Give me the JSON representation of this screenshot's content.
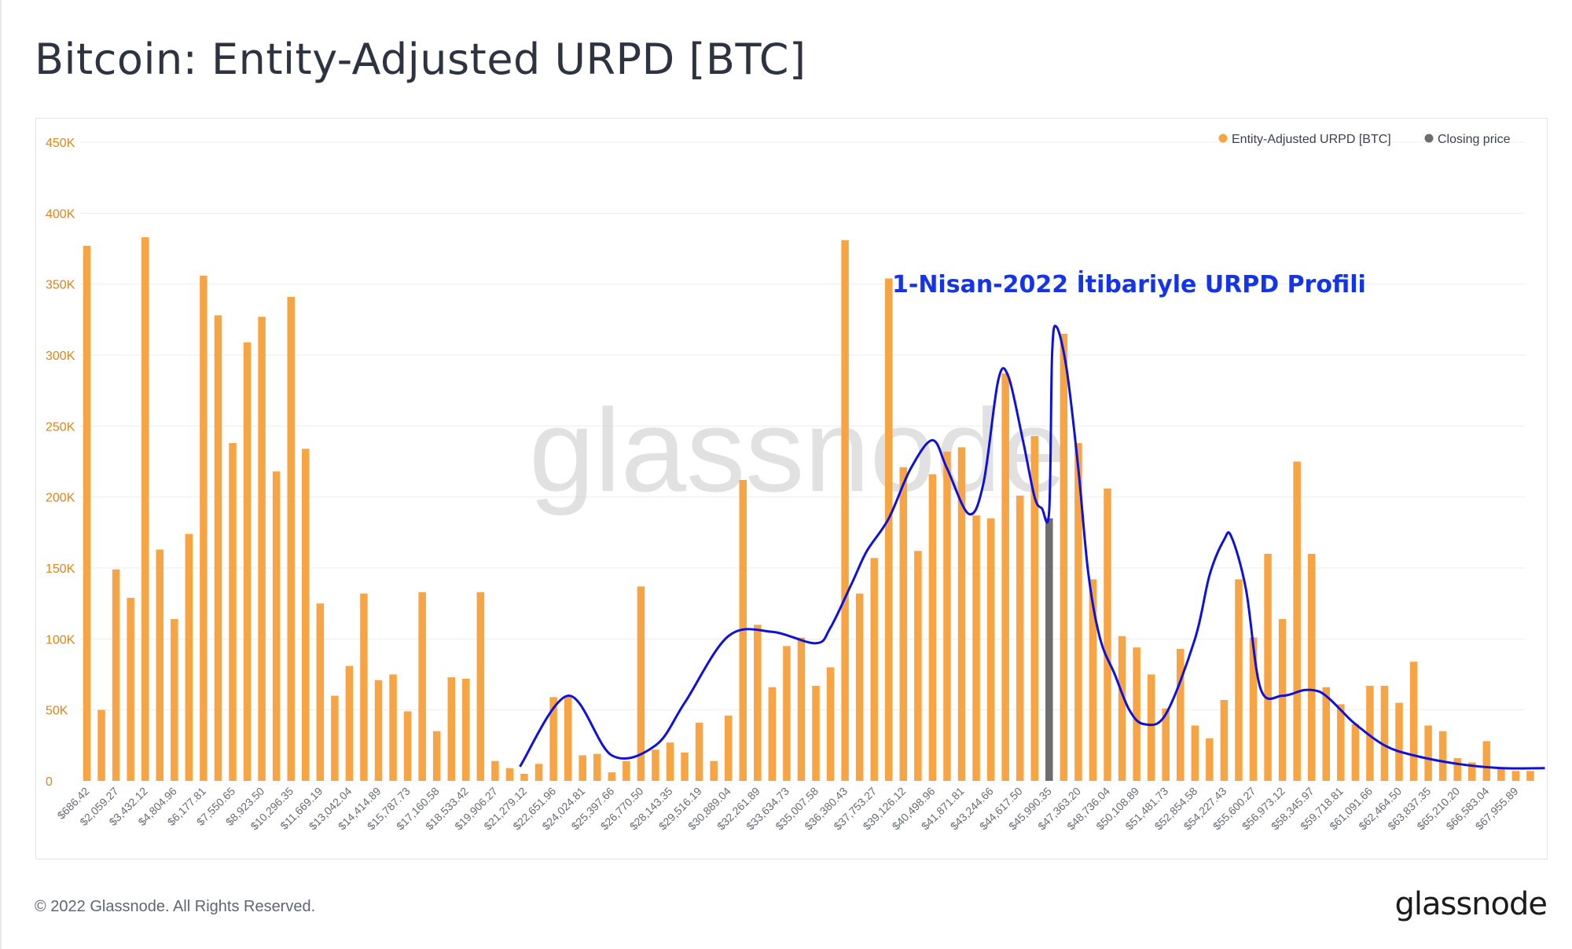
{
  "header": {
    "title": "Bitcoin: Entity-Adjusted URPD [BTC]"
  },
  "footer": {
    "copyright": "© 2022 Glassnode. All Rights Reserved.",
    "logo": "glassnode"
  },
  "watermark": "glassnode",
  "annotation": {
    "text": "1-Nisan-2022 İtibariyle URPD Profili",
    "color": "#1434e6"
  },
  "colors": {
    "bar": "#f7a445",
    "closing": "#6d6d6d",
    "curve": "#1010dd",
    "axis_text": "#d9861f",
    "grid": "#eeeeee"
  },
  "chart_data": {
    "type": "bar",
    "title": "Bitcoin: Entity-Adjusted URPD [BTC]",
    "ylim": [
      0,
      450000
    ],
    "y_ticks": [
      0,
      50000,
      100000,
      150000,
      200000,
      250000,
      300000,
      350000,
      400000,
      450000
    ],
    "y_tick_labels": [
      "0",
      "50K",
      "100K",
      "150K",
      "200K",
      "250K",
      "300K",
      "350K",
      "400K",
      "450K"
    ],
    "legend_position": "top-right",
    "grid": true,
    "legend": [
      {
        "name": "Entity-Adjusted URPD [BTC]",
        "color": "#f7a445"
      },
      {
        "name": "Closing price",
        "color": "#6d6d6d"
      }
    ],
    "x_tick_labels": [
      "$686.42",
      "$2,059.27",
      "$3,432.12",
      "$4,804.96",
      "$6,177.81",
      "$7,550.65",
      "$8,923.50",
      "$10,296.35",
      "$11,669.19",
      "$13,042.04",
      "$14,414.89",
      "$15,787.73",
      "$17,160.58",
      "$18,533.42",
      "$19,906.27",
      "$21,279.12",
      "$22,651.96",
      "$24,024.81",
      "$25,397.66",
      "$26,770.50",
      "$28,143.35",
      "$29,516.19",
      "$30,889.04",
      "$32,261.89",
      "$33,634.73",
      "$35,007.58",
      "$36,380.43",
      "$37,753.27",
      "$39,126.12",
      "$40,498.96",
      "$41,871.81",
      "$43,244.66",
      "$44,617.50",
      "$45,990.35",
      "$47,363.20",
      "$48,736.04",
      "$50,108.89",
      "$51,481.73",
      "$52,854.58",
      "$54,227.43",
      "$55,600.27",
      "$56,973.12",
      "$58,345.97",
      "$59,718.81",
      "$61,091.66",
      "$62,464.50",
      "$63,837.35",
      "$65,210.20",
      "$66,583.04",
      "$67,955.89"
    ],
    "bar_count": 100,
    "closing_price_bin": 66,
    "values": [
      377000,
      50000,
      149000,
      129000,
      383000,
      163000,
      114000,
      174000,
      356000,
      328000,
      238000,
      309000,
      327000,
      218000,
      341000,
      234000,
      125000,
      60000,
      81000,
      132000,
      71000,
      75000,
      49000,
      133000,
      35000,
      73000,
      72000,
      133000,
      14000,
      9000,
      5000,
      12000,
      59000,
      60000,
      18000,
      19000,
      6000,
      14000,
      137000,
      22000,
      27000,
      20000,
      41000,
      14000,
      46000,
      212000,
      110000,
      66000,
      95000,
      101000,
      67000,
      80000,
      381000,
      132000,
      157000,
      354000,
      221000,
      162000,
      216000,
      232000,
      235000,
      187000,
      185000,
      287000,
      201000,
      243000,
      185000,
      315000,
      238000,
      142000,
      206000,
      102000,
      94000,
      75000,
      51000,
      93000,
      39000,
      30000,
      57000,
      142000,
      101000,
      160000,
      114000,
      225000,
      160000,
      66000,
      54000,
      40000,
      67000,
      67000,
      55000,
      84000,
      39000,
      35000,
      16000,
      13000,
      28000,
      9000,
      7000,
      7000
    ],
    "annotation_curve": {
      "label": "1-Nisan-2022 İtibariyle URPD Profili",
      "x_bins": [
        29.7,
        33.0,
        36.0,
        39.0,
        41.0,
        44.0,
        47.0,
        50.0,
        51.0,
        52.5,
        53.5,
        55.0,
        56.5,
        58.0,
        59.0,
        60.5,
        61.5,
        62.5,
        63.2,
        64.2,
        65.0,
        65.5,
        66.0,
        66.2,
        66.5,
        67.2,
        68.0,
        68.7,
        69.5,
        70.5,
        71.5,
        72.5,
        74.0,
        76.0,
        77.0,
        78.0,
        78.5,
        79.5,
        80.5,
        82.0,
        83.5,
        84.5,
        85.2,
        86.0,
        87.0,
        89.0,
        91.0,
        94.0,
        97.0,
        100.0
      ],
      "y_values": [
        10000,
        60000,
        18000,
        25000,
        55000,
        102000,
        105000,
        97000,
        108000,
        140000,
        162000,
        185000,
        220000,
        240000,
        220000,
        188000,
        210000,
        282000,
        285000,
        240000,
        200000,
        192000,
        190000,
        300000,
        320000,
        290000,
        220000,
        145000,
        100000,
        75000,
        50000,
        40000,
        47000,
        100000,
        145000,
        170000,
        172000,
        135000,
        65000,
        60000,
        64000,
        63000,
        58000,
        50000,
        40000,
        25000,
        18000,
        12000,
        9000,
        9000
      ]
    }
  }
}
